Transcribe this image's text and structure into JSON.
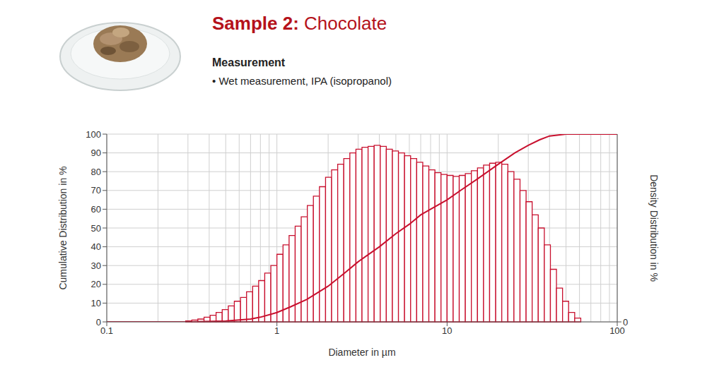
{
  "chart_data": {
    "type": "histogram",
    "title": "Sample 2: Chocolate",
    "subtitle": "Measurement",
    "annotations": [
      "• Wet measurement, IPA (isopropanol)"
    ],
    "x_label": "Diameter in µm",
    "y_label": "Cumulative Distribution in %",
    "y2_label": "Density Distribution in %",
    "log": "x",
    "grid": true,
    "xlim": [
      0.1,
      100
    ],
    "xticks": [
      0.1,
      1,
      10,
      100
    ],
    "ylim": [
      0,
      100
    ],
    "yticks": [
      0,
      10,
      20,
      30,
      40,
      50,
      60,
      70,
      80,
      90,
      100
    ],
    "y2lim": [
      0,
      100
    ],
    "y2ticks": [
      0
    ],
    "series": [
      {
        "type": "bar",
        "axis": "y2",
        "color": "#c8102e",
        "bins": [
          0.291,
          0.316,
          0.343,
          0.373,
          0.405,
          0.439,
          0.477,
          0.518,
          0.562,
          0.611,
          0.663,
          0.72,
          0.781,
          0.848,
          0.921,
          1,
          1.086,
          1.179,
          1.28,
          1.389,
          1.509,
          1.638,
          1.778,
          1.931,
          2.096,
          2.276,
          2.471,
          2.683,
          2.913,
          3.162,
          3.434,
          3.728,
          4.048,
          4.394,
          4.771,
          5.179,
          5.623,
          6.105,
          6.629,
          7.197,
          7.814,
          8.483,
          9.211,
          10,
          10.86,
          11.79,
          12.8,
          13.89,
          15.09,
          16.38,
          17.78,
          19.31,
          20.96,
          22.76,
          24.71,
          26.83,
          29.13,
          31.62,
          34.34,
          37.28,
          40.48,
          43.94,
          47.71,
          51.79,
          56.23,
          61.05
        ],
        "values": [
          0.5,
          1,
          1.5,
          2.5,
          3.5,
          5,
          6.5,
          8.5,
          11,
          13,
          16,
          19,
          22,
          26,
          30,
          36,
          41,
          46,
          51,
          56,
          62,
          67,
          72,
          77,
          81,
          84,
          87,
          90,
          92,
          93,
          93.5,
          94,
          93.5,
          92,
          91,
          90,
          88.5,
          87,
          85,
          83,
          81,
          79.5,
          78.5,
          78,
          77.5,
          78,
          79,
          80.5,
          82,
          83.5,
          84.5,
          85,
          84,
          80,
          76,
          70,
          64,
          57,
          50,
          41,
          28,
          18,
          11,
          5,
          2
        ]
      },
      {
        "type": "line",
        "color": "#c8102e",
        "x": [
          0.1,
          0.3,
          0.5,
          0.7,
          0.8,
          1,
          1.2,
          1.5,
          2,
          2.5,
          3,
          4,
          5,
          6,
          7,
          8,
          10,
          12,
          15,
          20,
          25,
          30,
          35,
          40,
          50,
          100
        ],
        "values": [
          0,
          0,
          0.5,
          1.5,
          2.5,
          5,
          8,
          12,
          19,
          26,
          32,
          40,
          47,
          52,
          57,
          60,
          65,
          70,
          76,
          84,
          90,
          94,
          97,
          99,
          100,
          100
        ]
      }
    ]
  }
}
